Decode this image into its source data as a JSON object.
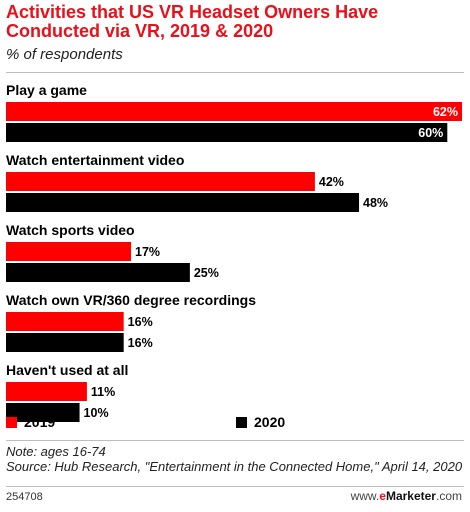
{
  "chart_data": {
    "type": "bar",
    "orientation": "horizontal",
    "title": "Activities that US VR Headset Owners Have Conducted via VR, 2019 & 2020",
    "subtitle": "% of respondents",
    "categories": [
      "Play a game",
      "Watch entertainment video",
      "Watch sports video",
      "Watch own VR/360 degree recordings",
      "Haven't used at all"
    ],
    "series": [
      {
        "name": "2019",
        "values": [
          62,
          42,
          17,
          16,
          11
        ],
        "labels": [
          "62%",
          "42%",
          "17%",
          "16%",
          "11%"
        ],
        "color": "#fe0000"
      },
      {
        "name": "2020",
        "values": [
          60,
          48,
          25,
          16,
          10
        ],
        "labels": [
          "60%",
          "48%",
          "25%",
          "16%",
          "10%"
        ],
        "color": "#000000"
      }
    ],
    "xlim": [
      0,
      62
    ],
    "grid": false,
    "legend_position": "bottom"
  },
  "legend": {
    "label_2019": "2019",
    "label_2020": "2020"
  },
  "colors": {
    "title": "#e8101b",
    "series_2019": "#fe0000",
    "series_2020": "#000000"
  },
  "notes": {
    "note": "Note: ages 16-74",
    "source": "Source: Hub Research, \"Entertainment in the Connected Home,\" April 14, 2020"
  },
  "footer": {
    "chart_id": "254708",
    "brand_prefix": "www.",
    "brand_e": "e",
    "brand_name": "Marketer",
    "brand_suffix": ".com"
  }
}
